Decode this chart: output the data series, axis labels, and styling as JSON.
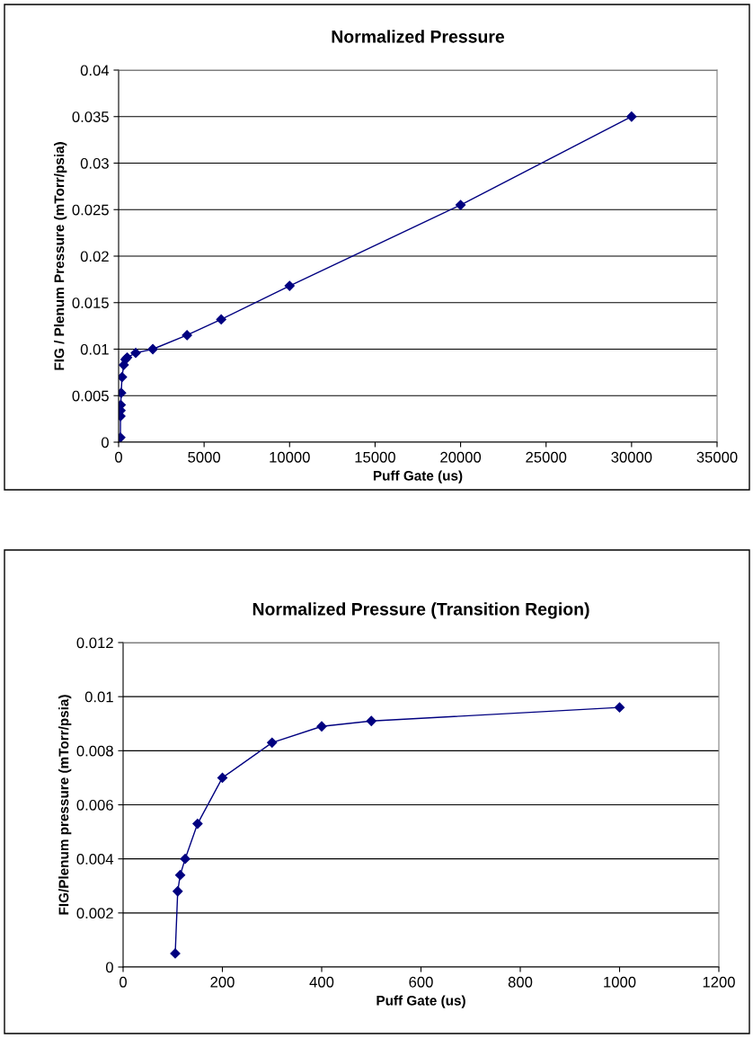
{
  "chart_data": [
    {
      "type": "line",
      "title": "Normalized Pressure",
      "xlabel": "Puff Gate (us)",
      "ylabel": "FIG / Plenum Pressure (mTorr/psia)",
      "x": [
        105,
        110,
        115,
        125,
        150,
        200,
        300,
        400,
        500,
        1000,
        2000,
        4000,
        6000,
        10000,
        20000,
        30000
      ],
      "series": [
        {
          "color": "#000080",
          "values": [
            0.0005,
            0.0028,
            0.0034,
            0.004,
            0.0053,
            0.007,
            0.0083,
            0.0089,
            0.0091,
            0.0096,
            0.01,
            0.0115,
            0.0132,
            0.0168,
            0.0255,
            0.035
          ]
        }
      ],
      "xlim": [
        0,
        35000
      ],
      "xticks": [
        0,
        5000,
        10000,
        15000,
        20000,
        25000,
        30000,
        35000
      ],
      "ylim": [
        0,
        0.04
      ],
      "yticks": [
        0,
        0.005,
        0.01,
        0.015,
        0.02,
        0.025,
        0.03,
        0.035,
        0.04
      ],
      "grid": "y",
      "marker": "diamond",
      "line_style": "solid"
    },
    {
      "type": "line",
      "title": "Normalized Pressure (Transition Region)",
      "xlabel": "Puff Gate (us)",
      "ylabel": "FIG/Plenum pressure (mTorr/psia)",
      "x": [
        105,
        110,
        115,
        125,
        150,
        200,
        300,
        400,
        500,
        1000
      ],
      "series": [
        {
          "color": "#000080",
          "values": [
            0.0005,
            0.0028,
            0.0034,
            0.004,
            0.0053,
            0.007,
            0.0083,
            0.0089,
            0.0091,
            0.0096
          ]
        }
      ],
      "xlim": [
        0,
        1200
      ],
      "xticks": [
        0,
        200,
        400,
        600,
        800,
        1000,
        1200
      ],
      "ylim": [
        0,
        0.012
      ],
      "yticks": [
        0,
        0.002,
        0.004,
        0.006,
        0.008,
        0.01,
        0.012
      ],
      "grid": "y",
      "marker": "diamond",
      "line_style": "solid"
    }
  ]
}
